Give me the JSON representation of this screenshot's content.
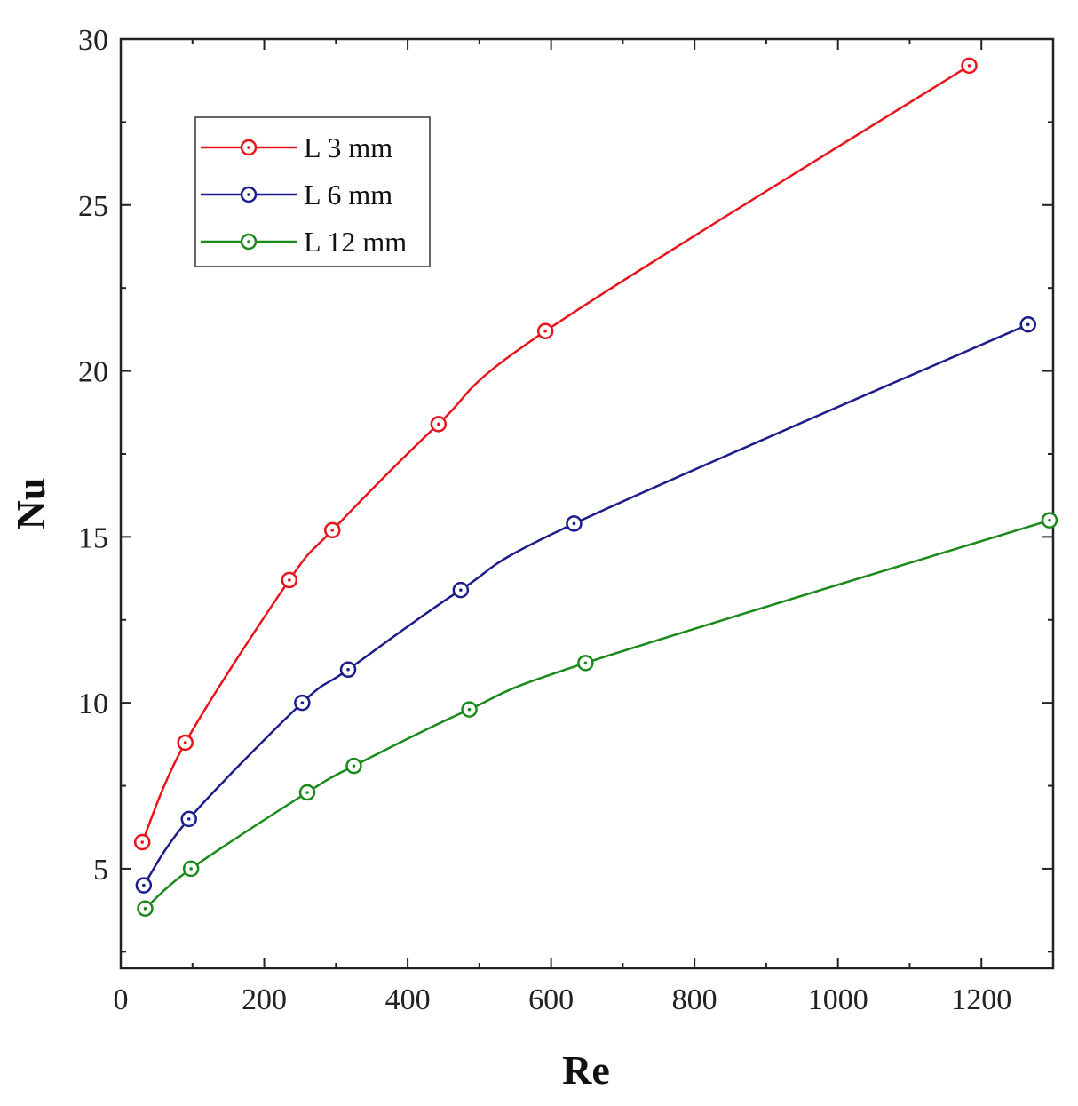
{
  "chart_data": {
    "type": "line",
    "title": "",
    "xlabel": "Re",
    "ylabel": "Nu",
    "xlim": [
      0,
      1300
    ],
    "ylim": [
      2,
      30
    ],
    "x_ticks": [
      0,
      200,
      400,
      600,
      800,
      1000,
      1200
    ],
    "y_ticks": [
      5,
      10,
      15,
      20,
      25,
      30
    ],
    "x_tick_labels": [
      "0",
      "200",
      "400",
      "600",
      "800",
      "1000",
      "1200"
    ],
    "y_tick_labels": [
      "5",
      "10",
      "15",
      "20",
      "25",
      "30"
    ],
    "grid": false,
    "legend_position": "top-left",
    "series": [
      {
        "name": "L 3 mm",
        "color": "#e8161b",
        "points": [
          [
            30,
            5.8
          ],
          [
            90,
            8.8
          ],
          [
            235,
            13.7
          ],
          [
            295,
            15.2
          ],
          [
            443,
            18.4
          ],
          [
            592,
            21.2
          ],
          [
            1183,
            29.2
          ]
        ]
      },
      {
        "name": "L 6 mm",
        "color": "#1c1c8c",
        "points": [
          [
            32,
            4.5
          ],
          [
            95,
            6.5
          ],
          [
            253,
            10.0
          ],
          [
            317,
            11.0
          ],
          [
            474,
            13.4
          ],
          [
            632,
            15.4
          ],
          [
            1265,
            21.4
          ]
        ]
      },
      {
        "name": "L 12 mm",
        "color": "#1a8a1a",
        "points": [
          [
            34,
            3.8
          ],
          [
            98,
            5.0
          ],
          [
            260,
            7.3
          ],
          [
            325,
            8.1
          ],
          [
            486,
            9.8
          ],
          [
            648,
            11.2
          ],
          [
            1295,
            15.5
          ]
        ]
      }
    ]
  }
}
